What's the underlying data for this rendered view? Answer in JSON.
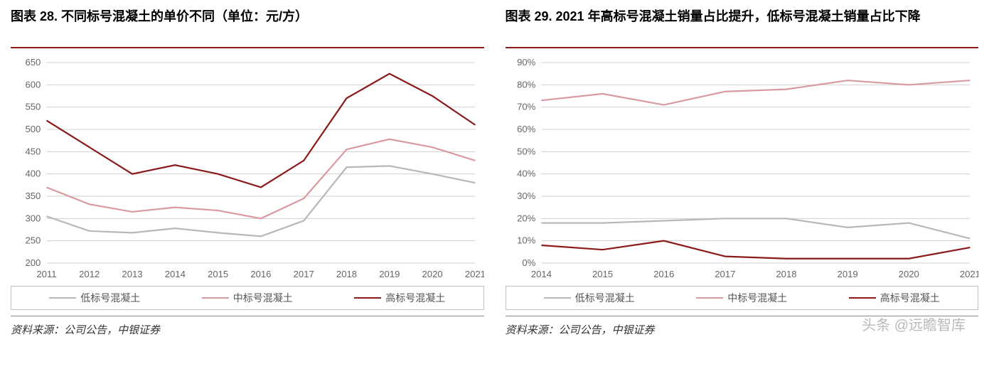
{
  "watermark": "头条 @远瞻智库",
  "left": {
    "title": "图表 28. 不同标号混凝土的单价不同（单位：元/方）",
    "source": "资料来源：公司公告，中银证券",
    "chart": {
      "type": "line",
      "xlabels": [
        "2011",
        "2012",
        "2013",
        "2014",
        "2015",
        "2016",
        "2017",
        "2018",
        "2019",
        "2020",
        "2021"
      ],
      "ylim": [
        200,
        650
      ],
      "ytick_step": 50,
      "grid_color": "#d0d0d0",
      "background": "#ffffff",
      "series": [
        {
          "name": "低标号混凝土",
          "color": "#b8b8b8",
          "values": [
            305,
            272,
            268,
            278,
            268,
            260,
            295,
            415,
            418,
            400,
            380
          ]
        },
        {
          "name": "中标号混凝土",
          "color": "#d89aa0",
          "values": [
            370,
            332,
            315,
            325,
            318,
            300,
            345,
            455,
            478,
            460,
            430
          ]
        },
        {
          "name": "高标号混凝土",
          "color": "#8b1a1a",
          "values": [
            520,
            460,
            400,
            420,
            400,
            370,
            430,
            570,
            625,
            575,
            510
          ]
        }
      ],
      "axis_fontsize": 13,
      "axis_color": "#666666",
      "line_width": 2.2
    }
  },
  "right": {
    "title": "图表 29. 2021 年高标号混凝土销量占比提升，低标号混凝土销量占比下降",
    "source": "资料来源：公司公告，中银证券",
    "chart": {
      "type": "line",
      "xlabels": [
        "2014",
        "2015",
        "2016",
        "2017",
        "2018",
        "2019",
        "2020",
        "2021"
      ],
      "ylim": [
        0,
        90
      ],
      "ytick_step": 10,
      "ysuffix": "%",
      "grid_color": "#d0d0d0",
      "background": "#ffffff",
      "series": [
        {
          "name": "低标号混凝土",
          "color": "#b8b8b8",
          "values": [
            18,
            18,
            19,
            20,
            20,
            16,
            18,
            11
          ]
        },
        {
          "name": "中标号混凝土",
          "color": "#d89aa0",
          "values": [
            73,
            76,
            71,
            77,
            78,
            82,
            80,
            82
          ]
        },
        {
          "name": "高标号混凝土",
          "color": "#8b1a1a",
          "values": [
            8,
            6,
            10,
            3,
            2,
            2,
            2,
            7
          ]
        }
      ],
      "axis_fontsize": 13,
      "axis_color": "#666666",
      "line_width": 2.2
    }
  }
}
